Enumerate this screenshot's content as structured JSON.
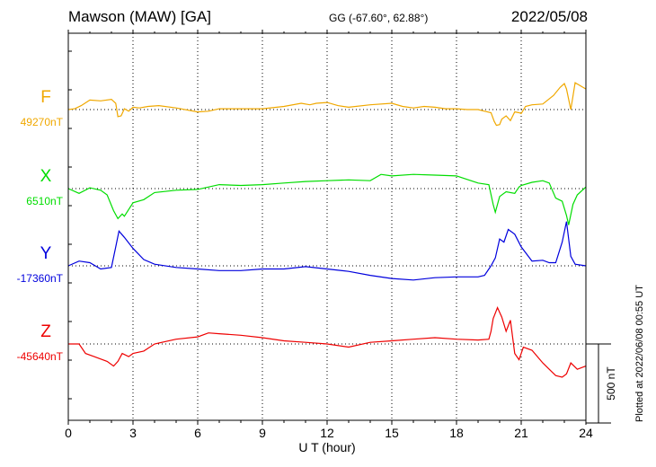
{
  "header": {
    "station": "Mawson (MAW)  [GA]",
    "coords": "GG (-67.60°,  62.88°)",
    "date": "2022/05/08"
  },
  "footer": {
    "plotted": "Plotted at 2022/06/08 00:55 UT"
  },
  "chart_data": {
    "type": "line",
    "title": "Mawson (MAW)  [GA]",
    "xlabel": "U T (hour)",
    "xlim": [
      0,
      24
    ],
    "xticks": [
      "0",
      "3",
      "6",
      "9",
      "12",
      "15",
      "18",
      "21",
      "24"
    ],
    "scale_bar_label": "500 nT",
    "scale_bar_nT": 500,
    "grid": true,
    "colors": {
      "F": "#f0a800",
      "X": "#00dd00",
      "Y": "#0000dd",
      "Z": "#ee0000"
    },
    "series": [
      {
        "name": "F",
        "baseline_label": "49270nT",
        "baseline_nT": 49270,
        "x": [
          0,
          0.3,
          0.6,
          1.0,
          1.5,
          2.0,
          2.2,
          2.3,
          2.45,
          2.6,
          2.8,
          3.0,
          3.3,
          3.7,
          4.2,
          5.0,
          6.0,
          6.5,
          7.0,
          8.0,
          9.0,
          10.0,
          10.8,
          11.2,
          11.5,
          12.0,
          12.5,
          13.0,
          14.0,
          15.0,
          15.5,
          16.0,
          16.5,
          17.0,
          17.5,
          18.0,
          18.5,
          19.0,
          19.3,
          19.6,
          19.75,
          19.85,
          20.0,
          20.1,
          20.3,
          20.5,
          20.7,
          20.9,
          21.0,
          21.2,
          21.5,
          22.0,
          22.5,
          22.8,
          23.0,
          23.1,
          23.3,
          23.5,
          24.0
        ],
        "y": [
          0,
          5,
          25,
          60,
          55,
          65,
          40,
          -45,
          -40,
          5,
          -10,
          15,
          10,
          20,
          25,
          10,
          -15,
          -10,
          5,
          5,
          5,
          20,
          40,
          30,
          40,
          45,
          25,
          15,
          30,
          40,
          20,
          10,
          20,
          15,
          5,
          5,
          0,
          0,
          -10,
          -20,
          -75,
          -100,
          -95,
          -60,
          -40,
          -70,
          -15,
          -20,
          -25,
          20,
          30,
          35,
          90,
          140,
          165,
          130,
          0,
          170,
          130
        ]
      },
      {
        "name": "X",
        "baseline_label": "6510nT",
        "baseline_nT": 6510,
        "x": [
          0,
          0.5,
          1.0,
          1.5,
          1.8,
          2.1,
          2.3,
          2.5,
          2.6,
          3.0,
          3.5,
          4.0,
          5.0,
          6.0,
          7.0,
          8.0,
          9.0,
          10.0,
          11.0,
          12.0,
          13.0,
          14.0,
          14.5,
          15.0,
          16.0,
          17.0,
          18.0,
          19.0,
          19.5,
          19.7,
          19.8,
          20.0,
          20.3,
          20.7,
          20.9,
          21.0,
          21.5,
          22.0,
          22.3,
          22.6,
          22.9,
          23.1,
          23.2,
          23.4,
          23.6,
          24.0
        ],
        "y": [
          0,
          -30,
          5,
          -10,
          -40,
          -140,
          -190,
          -160,
          -175,
          -90,
          -70,
          -25,
          -10,
          -5,
          25,
          20,
          25,
          35,
          45,
          50,
          55,
          50,
          90,
          80,
          90,
          85,
          80,
          35,
          25,
          -100,
          -150,
          -50,
          -20,
          -30,
          10,
          20,
          40,
          50,
          35,
          -60,
          -80,
          -170,
          -230,
          -100,
          -40,
          10
        ]
      },
      {
        "name": "Y",
        "baseline_label": "-17360nT",
        "baseline_nT": -17360,
        "x": [
          0,
          0.5,
          1.0,
          1.5,
          2.0,
          2.2,
          2.35,
          2.6,
          3.0,
          3.5,
          4.0,
          5.0,
          6.0,
          7.0,
          8.0,
          9.0,
          10.0,
          11.0,
          12.0,
          13.0,
          14.0,
          15.0,
          16.0,
          17.0,
          18.0,
          19.0,
          19.3,
          19.6,
          19.8,
          20.0,
          20.2,
          20.4,
          20.7,
          21.0,
          21.5,
          22.0,
          22.3,
          22.6,
          22.9,
          23.1,
          23.3,
          23.5,
          24.0
        ],
        "y": [
          0,
          30,
          20,
          -20,
          -10,
          120,
          220,
          180,
          110,
          40,
          10,
          -10,
          -20,
          -30,
          -30,
          -20,
          -20,
          -5,
          -20,
          -35,
          -60,
          -80,
          -90,
          -75,
          -70,
          -70,
          -60,
          0,
          50,
          170,
          150,
          230,
          200,
          120,
          30,
          35,
          20,
          20,
          150,
          280,
          60,
          10,
          0
        ]
      },
      {
        "name": "Z",
        "baseline_label": "-45640nT",
        "baseline_nT": -45640,
        "x": [
          0,
          0.5,
          0.8,
          1.2,
          1.8,
          2.1,
          2.3,
          2.5,
          2.8,
          3.0,
          3.5,
          4.0,
          5.0,
          6.0,
          6.5,
          7.0,
          8.0,
          9.0,
          10.0,
          11.0,
          12.0,
          13.0,
          14.0,
          15.0,
          16.0,
          17.0,
          18.0,
          19.0,
          19.5,
          19.6,
          19.7,
          19.9,
          20.1,
          20.3,
          20.5,
          20.7,
          20.9,
          21.1,
          21.5,
          22.0,
          22.3,
          22.6,
          22.9,
          23.1,
          23.3,
          23.6,
          24.0
        ],
        "y": [
          0,
          0,
          -60,
          -80,
          -110,
          -140,
          -110,
          -60,
          -80,
          -60,
          -45,
          0,
          30,
          45,
          70,
          65,
          55,
          40,
          20,
          10,
          0,
          -20,
          10,
          20,
          30,
          40,
          30,
          25,
          30,
          80,
          160,
          230,
          170,
          80,
          150,
          -60,
          -100,
          -20,
          -40,
          -120,
          -160,
          -200,
          -210,
          -190,
          -120,
          -160,
          -140
        ]
      }
    ]
  }
}
